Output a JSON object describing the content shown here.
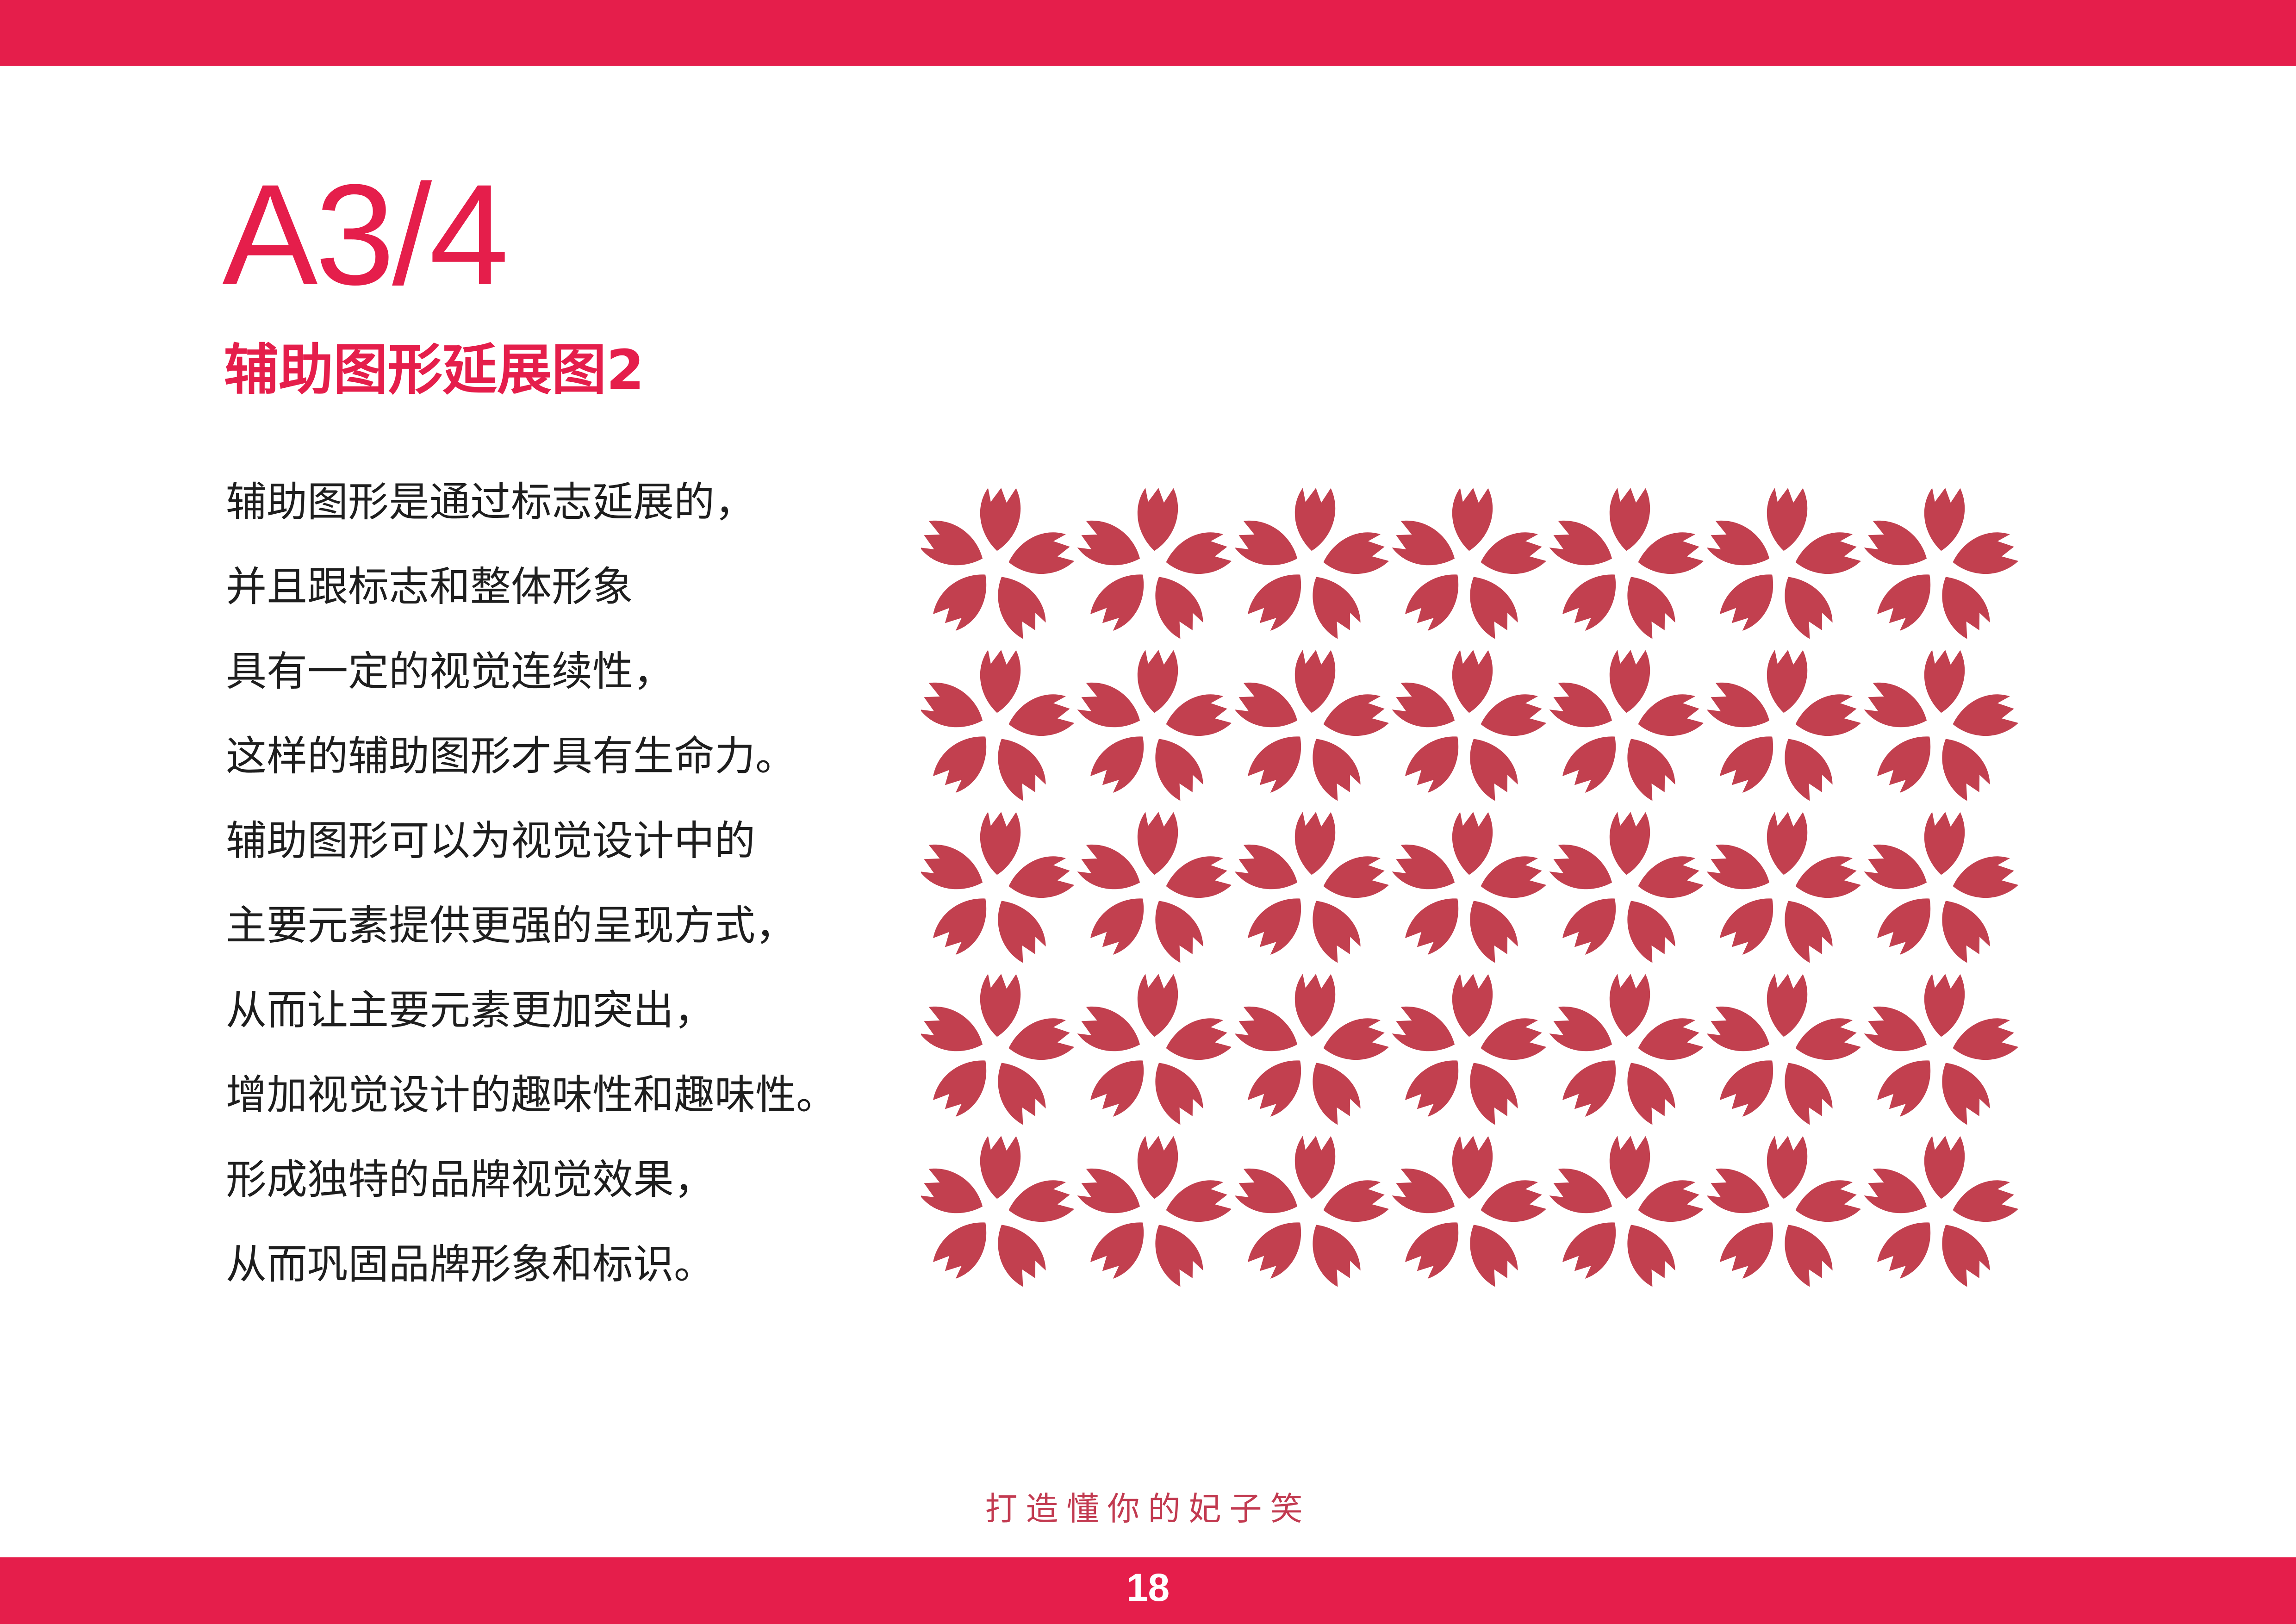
{
  "header": {
    "section_code": "A3/4",
    "title": "辅助图形延展图2"
  },
  "body_lines": [
    "辅助图形是通过标志延展的，",
    "并且跟标志和整体形象",
    "具有一定的视觉连续性，",
    "这样的辅助图形才具有生命力。",
    "辅助图形可以为视觉设计中的",
    "主要元素提供更强的呈现方式，",
    "从而让主要元素更加突出，",
    "增加视觉设计的趣味性和趣味性。",
    "形成独特的品牌视觉效果，",
    "从而巩固品牌形象和标识。"
  ],
  "pattern": {
    "rows": 5,
    "columns": 7,
    "color": "#c2404f",
    "icon": "flower-icon"
  },
  "footer": {
    "tagline": "打造懂你的妃子笑",
    "page_number": "18"
  },
  "colors": {
    "brand": "#e51e4b",
    "pattern": "#c2404f",
    "text": "#1e1e1e"
  }
}
